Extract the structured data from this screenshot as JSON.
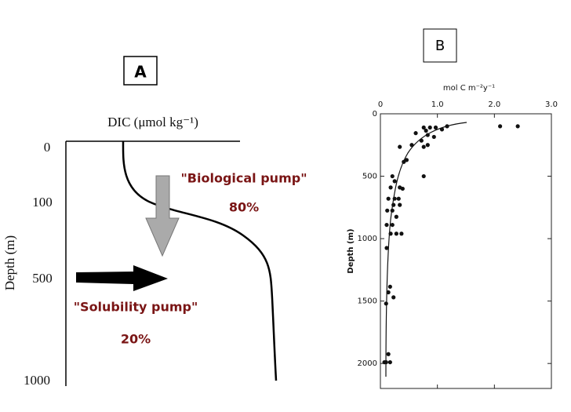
{
  "panel_a": {
    "label": "A",
    "x_label": "DIC (μmol kg⁻¹)",
    "y_label": "Depth (m)",
    "depth_labels": [
      "0",
      "100",
      "500",
      "1000"
    ],
    "annotations": [
      "\"Biological pump\"",
      "80%",
      "\"Solubility pump\"",
      "20%"
    ]
  },
  "chart_data": {
    "type": "scatter",
    "label": "B",
    "x_label": "mol C m⁻²y⁻¹",
    "y_label": "Depth (m)",
    "color": "#111111",
    "xlim": [
      0,
      3.0
    ],
    "xticks": [
      0,
      {
        "value": 1.0,
        "label": "1.0"
      },
      {
        "value": 2.0,
        "label": "2.0"
      },
      {
        "value": 3.0,
        "label": "3.0"
      }
    ],
    "ylim": [
      0,
      2200
    ],
    "yticks": [
      0,
      500,
      1000,
      1500,
      2000
    ],
    "y_inverted": true,
    "x": [
      2.1,
      2.41,
      1.17,
      1.08,
      0.97,
      0.87,
      0.8,
      0.76,
      0.62,
      0.83,
      0.94,
      0.72,
      0.55,
      0.83,
      0.76,
      0.34,
      0.46,
      0.41,
      0.76,
      0.21,
      0.25,
      0.34,
      0.18,
      0.39,
      0.14,
      0.25,
      0.32,
      0.34,
      0.23,
      0.12,
      0.21,
      0.28,
      0.11,
      0.21,
      0.18,
      0.28,
      0.37,
      0.11,
      0.17,
      0.14,
      0.1,
      0.23,
      0.14,
      0.1,
      0.17,
      0.07
    ],
    "values": [
      100,
      100,
      100,
      125,
      110,
      110,
      135,
      110,
      155,
      170,
      185,
      215,
      250,
      250,
      265,
      265,
      370,
      385,
      500,
      500,
      540,
      590,
      590,
      600,
      680,
      680,
      680,
      730,
      730,
      775,
      775,
      825,
      890,
      890,
      960,
      960,
      960,
      1075,
      1385,
      1430,
      1520,
      1470,
      1925,
      1990,
      1990,
      1990
    ]
  }
}
